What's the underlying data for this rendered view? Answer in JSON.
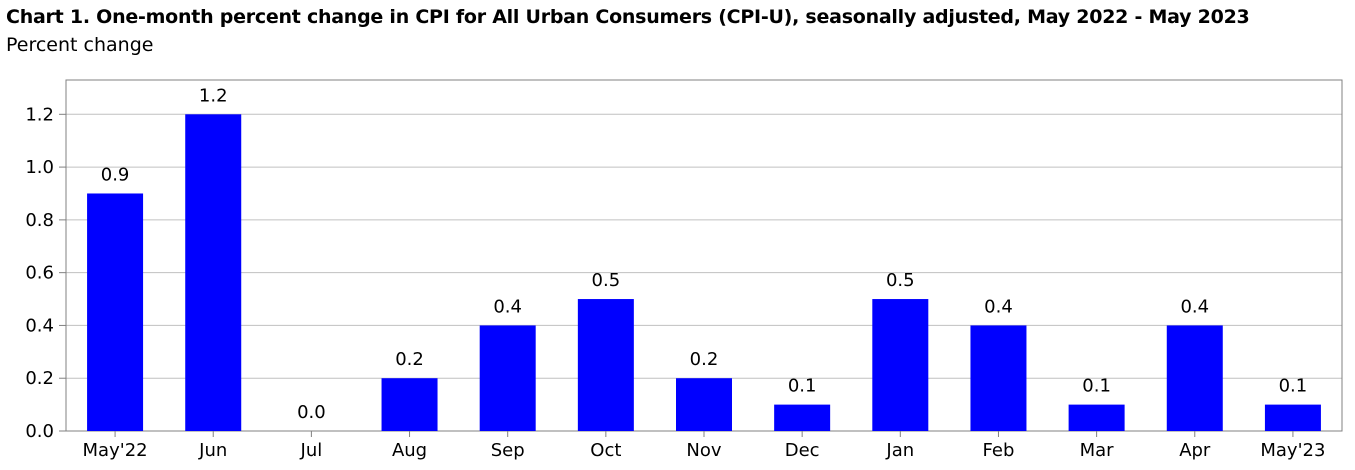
{
  "title": "Chart 1. One-month percent change in CPI for All Urban Consumers (CPI-U), seasonally adjusted, May 2022 - May 2023",
  "subtitle": "Percent change",
  "chart_data": {
    "type": "bar",
    "title": "Chart 1. One-month percent change in CPI for All Urban Consumers (CPI-U), seasonally adjusted, May 2022 - May 2023",
    "subtitle": "Percent change",
    "xlabel": "",
    "ylabel": "",
    "categories": [
      "May'22",
      "Jun",
      "Jul",
      "Aug",
      "Sep",
      "Oct",
      "Nov",
      "Dec",
      "Jan",
      "Feb",
      "Mar",
      "Apr",
      "May'23"
    ],
    "values": [
      0.9,
      1.2,
      0.0,
      0.2,
      0.4,
      0.5,
      0.2,
      0.1,
      0.5,
      0.4,
      0.1,
      0.4,
      0.1
    ],
    "data_labels": [
      "0.9",
      "1.2",
      "0.0",
      "0.2",
      "0.4",
      "0.5",
      "0.2",
      "0.1",
      "0.5",
      "0.4",
      "0.1",
      "0.4",
      "0.1"
    ],
    "y_ticks": [
      0.0,
      0.2,
      0.4,
      0.6,
      0.8,
      1.0,
      1.2
    ],
    "y_tick_labels": [
      "0.0",
      "0.2",
      "0.4",
      "0.6",
      "0.8",
      "1.0",
      "1.2"
    ],
    "ylim": [
      0,
      1.33
    ],
    "grid": true,
    "legend": "none",
    "bar_color": "#0000ff",
    "grid_color": "#c0c0c0",
    "axis_color": "#808080"
  }
}
